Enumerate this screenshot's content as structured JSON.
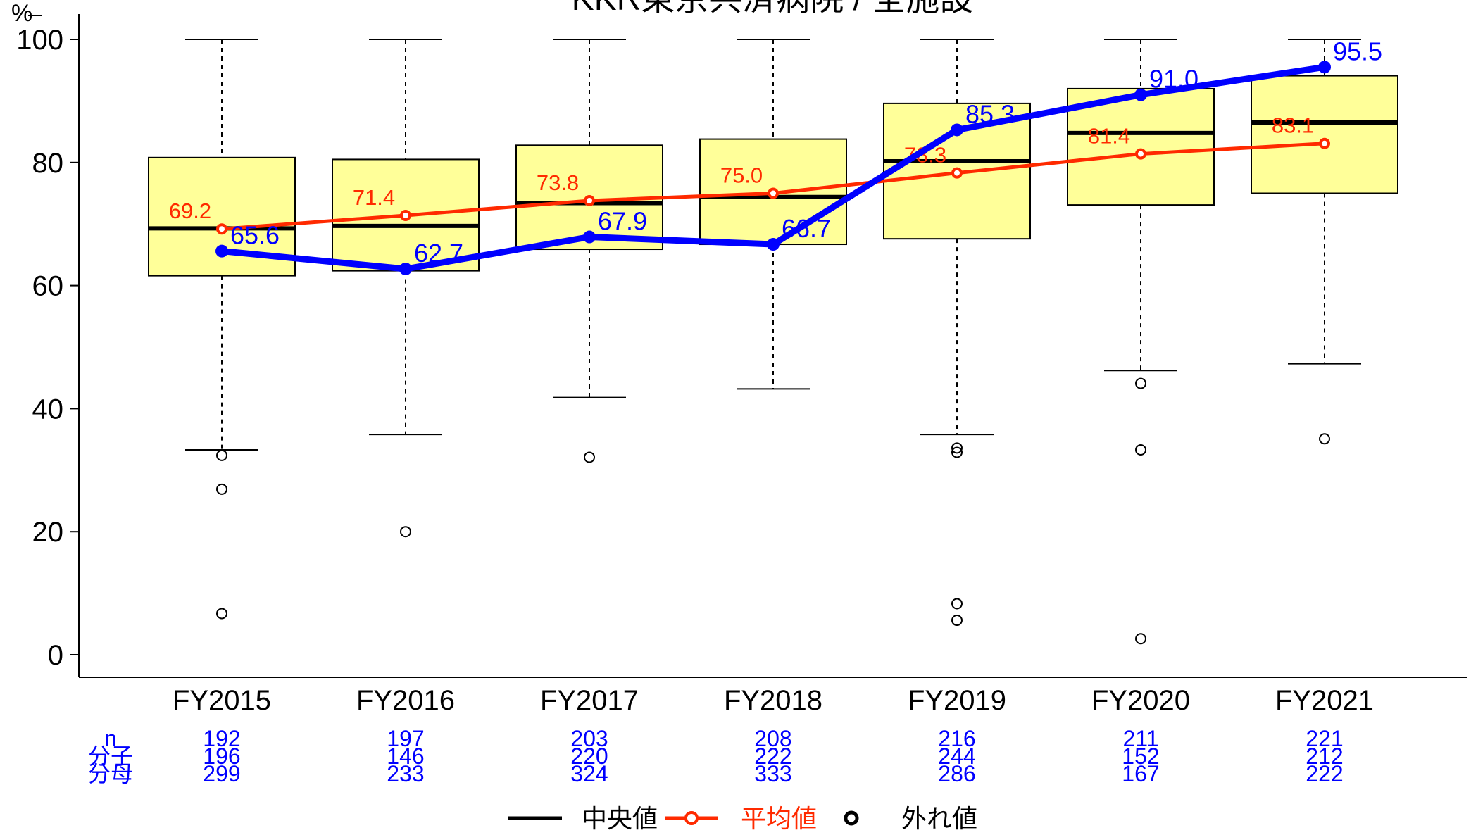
{
  "chart_data": {
    "type": "box",
    "title": "KKR東京共済病院 / 全施設",
    "ylabel": "%",
    "ylim": [
      0,
      100
    ],
    "yticks": [
      0,
      20,
      40,
      60,
      80,
      100
    ],
    "categories": [
      "FY2015",
      "FY2016",
      "FY2017",
      "FY2018",
      "FY2019",
      "FY2020",
      "FY2021"
    ],
    "boxes": [
      {
        "q1": 61.6,
        "median": 69.3,
        "q3": 80.8,
        "whisker_low": 33.3,
        "whisker_high": 100
      },
      {
        "q1": 62.4,
        "median": 69.7,
        "q3": 80.5,
        "whisker_low": 35.8,
        "whisker_high": 100
      },
      {
        "q1": 65.9,
        "median": 73.4,
        "q3": 82.8,
        "whisker_low": 41.8,
        "whisker_high": 100
      },
      {
        "q1": 66.7,
        "median": 74.4,
        "q3": 83.8,
        "whisker_low": 43.2,
        "whisker_high": 100
      },
      {
        "q1": 67.6,
        "median": 80.2,
        "q3": 89.6,
        "whisker_low": 35.8,
        "whisker_high": 100
      },
      {
        "q1": 73.1,
        "median": 84.8,
        "q3": 92.0,
        "whisker_low": 46.2,
        "whisker_high": 100
      },
      {
        "q1": 75.0,
        "median": 86.5,
        "q3": 94.1,
        "whisker_low": 47.3,
        "whisker_high": 100
      }
    ],
    "outliers": [
      [
        32.4,
        26.9,
        6.7
      ],
      [
        20.0
      ],
      [
        32.1
      ],
      [],
      [
        33.6,
        32.9,
        8.3,
        5.6
      ],
      [
        44.1,
        33.3,
        2.6
      ],
      [
        35.1
      ]
    ],
    "mean": {
      "name": "平均値",
      "values": [
        69.2,
        71.4,
        73.8,
        75.0,
        78.3,
        81.4,
        83.1
      ],
      "labels": [
        "69.2",
        "71.4",
        "73.8",
        "75.0",
        "78.3",
        "81.4",
        "83.1"
      ],
      "color": "#ff2a00"
    },
    "facility": {
      "values": [
        65.6,
        62.7,
        67.9,
        66.7,
        85.3,
        91.0,
        95.5
      ],
      "labels": [
        "65.6",
        "62.7",
        "67.9",
        "66.7",
        "85.3",
        "91.0",
        "95.5"
      ],
      "color": "#0000ff"
    },
    "counts": {
      "row_labels": [
        "n",
        "分子",
        "分母"
      ],
      "n": [
        "192",
        "197",
        "203",
        "208",
        "216",
        "211",
        "221"
      ],
      "numerator": [
        "196",
        "146",
        "220",
        "222",
        "244",
        "152",
        "212"
      ],
      "denominator": [
        "299",
        "233",
        "324",
        "333",
        "286",
        "167",
        "222"
      ]
    },
    "legend": [
      {
        "label": "中央値",
        "color": "#000000"
      },
      {
        "label": "平均値",
        "color": "#ff2a00"
      },
      {
        "label": "外れ値",
        "color": "#000000"
      }
    ],
    "colors": {
      "box_fill": "#ffff99",
      "median": "#000000",
      "mean": "#ff2a00",
      "facility": "#0000ff"
    }
  }
}
